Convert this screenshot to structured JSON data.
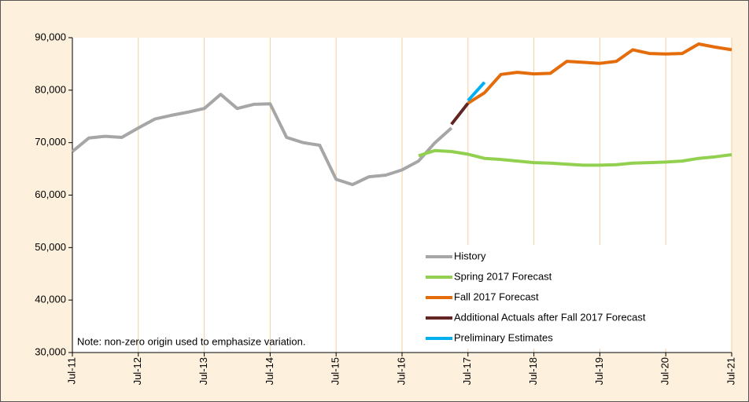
{
  "chart_data": {
    "type": "line",
    "categories": [
      "Jul-11",
      null,
      null,
      null,
      "Jul-12",
      null,
      null,
      null,
      "Jul-13",
      null,
      null,
      null,
      "Jul-14",
      null,
      null,
      null,
      "Jul-15",
      null,
      null,
      null,
      "Jul-16",
      null,
      null,
      null,
      "Jul-17",
      null,
      null,
      null,
      "Jul-18",
      null,
      null,
      null,
      "Jul-19",
      null,
      null,
      null,
      "Jul-20",
      null,
      null,
      null,
      "Jul-21"
    ],
    "series": [
      {
        "name": "History",
        "color": "#a6a6a6",
        "values": [
          68300,
          70900,
          71200,
          71000,
          72800,
          74500,
          75200,
          75800,
          76500,
          79200,
          76500,
          77300,
          77400,
          71000,
          70000,
          69500,
          63000,
          62000,
          63500,
          63800,
          64800,
          66500,
          70000,
          72800,
          null,
          null,
          null,
          null,
          null,
          null,
          null,
          null,
          null,
          null,
          null,
          null,
          null,
          null,
          null,
          null,
          null
        ]
      },
      {
        "name": "Spring 2017 Forecast",
        "color": "#92d050",
        "values": [
          null,
          null,
          null,
          null,
          null,
          null,
          null,
          null,
          null,
          null,
          null,
          null,
          null,
          null,
          null,
          null,
          null,
          null,
          null,
          null,
          null,
          67500,
          68500,
          68300,
          67800,
          67000,
          66800,
          66500,
          66200,
          66100,
          65900,
          65700,
          65700,
          65800,
          66100,
          66200,
          66300,
          66500,
          67000,
          67300,
          67700
        ]
      },
      {
        "name": "Fall 2017 Forecast",
        "color": "#e46c0a",
        "values": [
          null,
          null,
          null,
          null,
          null,
          null,
          null,
          null,
          null,
          null,
          null,
          null,
          null,
          null,
          null,
          null,
          null,
          null,
          null,
          null,
          null,
          null,
          null,
          null,
          77500,
          79500,
          83000,
          83400,
          83100,
          83200,
          85500,
          85300,
          85100,
          85500,
          87700,
          87000,
          86900,
          87000,
          88800,
          88200,
          87700
        ]
      },
      {
        "name": "Additional Actuals after Fall 2017 Forecast",
        "color": "#632523",
        "values": [
          null,
          null,
          null,
          null,
          null,
          null,
          null,
          null,
          null,
          null,
          null,
          null,
          null,
          null,
          null,
          null,
          null,
          null,
          null,
          null,
          null,
          null,
          null,
          73500,
          77500,
          null,
          null,
          null,
          null,
          null,
          null,
          null,
          null,
          null,
          null,
          null,
          null,
          null,
          null,
          null,
          null
        ]
      },
      {
        "name": "Preliminary Estimates",
        "color": "#00b0f0",
        "values": [
          null,
          null,
          null,
          null,
          null,
          null,
          null,
          null,
          null,
          null,
          null,
          null,
          null,
          null,
          null,
          null,
          null,
          null,
          null,
          null,
          null,
          null,
          null,
          null,
          78000,
          81500,
          null,
          null,
          null,
          null,
          null,
          null,
          null,
          null,
          null,
          null,
          null,
          null,
          null,
          null,
          null
        ]
      }
    ],
    "ylim": [
      30000,
      90000
    ],
    "yticks": [
      {
        "value": 30000,
        "label": "30,000"
      },
      {
        "value": 40000,
        "label": "40,000"
      },
      {
        "value": 50000,
        "label": "50,000"
      },
      {
        "value": 60000,
        "label": "60,000"
      },
      {
        "value": 70000,
        "label": "70,000"
      },
      {
        "value": 80000,
        "label": "80,000"
      },
      {
        "value": 90000,
        "label": "90,000"
      }
    ],
    "grid": true,
    "legend": "lower right",
    "annotation": "Note: non-zero origin used to emphasize variation."
  }
}
